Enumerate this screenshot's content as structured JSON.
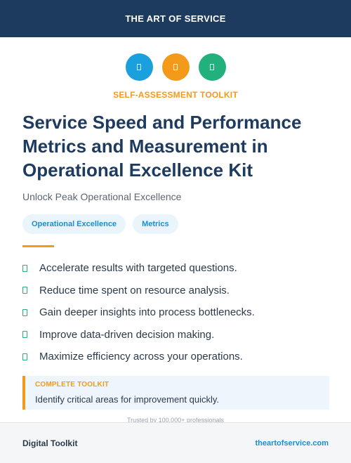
{
  "header": {
    "brand": "THE ART OF SERVICE"
  },
  "icons": [
    {
      "name": "document-icon",
      "color": "#1aa0dc"
    },
    {
      "name": "document-icon",
      "color": "#f39a1b"
    },
    {
      "name": "document-icon",
      "color": "#22b07d"
    }
  ],
  "eyebrow": "SELF-ASSESSMENT TOOLKIT",
  "title": "Service Speed and Performance Metrics and Measurement in Operational Excellence Kit",
  "subtitle": "Unlock Peak Operational Excellence",
  "tags": [
    "Operational Excellence",
    "Metrics"
  ],
  "benefits": [
    "Accelerate results with targeted questions.",
    "Reduce time spent on resource analysis.",
    "Gain deeper insights into process bottlenecks.",
    "Improve data-driven decision making.",
    "Maximize efficiency across your operations."
  ],
  "callout": {
    "heading": "COMPLETE TOOLKIT",
    "text": "Identify critical areas for improvement quickly."
  },
  "trust_line": "Trusted by 100,000+ professionals",
  "footer": {
    "left": "Digital Toolkit",
    "right": "theartofservice.com"
  },
  "colors": {
    "navy": "#1d3a5f",
    "orange": "#f39a1b",
    "blue": "#1aa0dc",
    "green": "#22b07d"
  }
}
